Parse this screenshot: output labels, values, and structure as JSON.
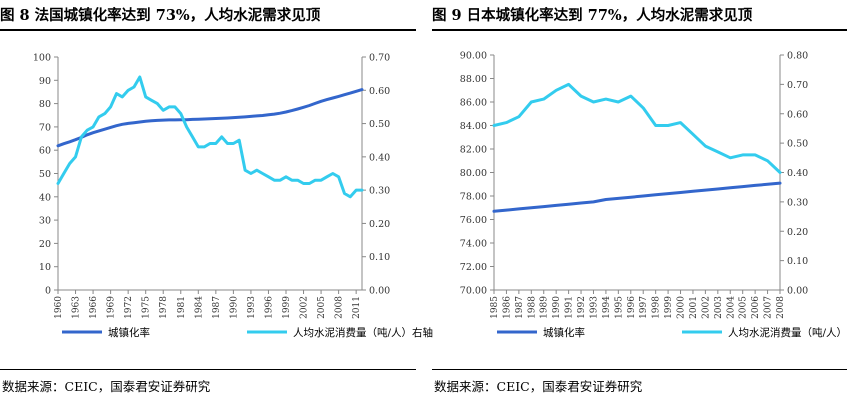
{
  "charts": [
    {
      "figure_title": "图 8  法国城镇化率达到 73%，人均水泥需求见顶",
      "source": "数据来源：CEIC，国泰君安证券研究"
    },
    {
      "figure_title": "图 9  日本城镇化率达到 77%，人均水泥需求见顶",
      "source": "数据来源：CEIC，国泰君安证券研究"
    }
  ],
  "colors": {
    "urbanization": "#3366cc",
    "cement": "#33ccee",
    "axis": "#888888"
  },
  "chart_data": [
    {
      "type": "line",
      "title": "图 8  法国城镇化率达到 73%，人均水泥需求见顶",
      "x": [
        1960,
        1961,
        1962,
        1963,
        1964,
        1965,
        1966,
        1967,
        1968,
        1969,
        1970,
        1971,
        1972,
        1973,
        1974,
        1975,
        1976,
        1977,
        1978,
        1979,
        1980,
        1981,
        1982,
        1983,
        1984,
        1985,
        1986,
        1987,
        1988,
        1989,
        1990,
        1991,
        1992,
        1993,
        1994,
        1995,
        1996,
        1997,
        1998,
        1999,
        2000,
        2001,
        2002,
        2003,
        2004,
        2005,
        2006,
        2007,
        2008,
        2009,
        2010,
        2011,
        2012
      ],
      "x_tick_labels": [
        "1960",
        "1963",
        "1966",
        "1969",
        "1972",
        "1975",
        "1978",
        "1981",
        "1984",
        "1987",
        "1990",
        "1993",
        "1996",
        "1999",
        "2002",
        "2005",
        "2008",
        "2011"
      ],
      "ylim": [
        0,
        100
      ],
      "y_ticks": [
        0,
        10,
        20,
        30,
        40,
        50,
        60,
        70,
        80,
        90,
        100
      ],
      "y2lim": [
        0,
        0.7
      ],
      "y2_tick_labels": [
        "0.00",
        "0.10",
        "0.20",
        "0.30",
        "0.40",
        "0.50",
        "0.60",
        "0.70"
      ],
      "series": [
        {
          "name": "城镇化率",
          "axis": "left",
          "values": [
            61.9,
            62.8,
            63.6,
            64.5,
            65.5,
            66.6,
            67.5,
            68.3,
            69.0,
            69.8,
            70.5,
            71.1,
            71.5,
            71.8,
            72.1,
            72.4,
            72.6,
            72.8,
            72.9,
            73.0,
            73.0,
            73.1,
            73.1,
            73.2,
            73.3,
            73.4,
            73.5,
            73.6,
            73.7,
            73.8,
            74.0,
            74.1,
            74.3,
            74.5,
            74.7,
            74.9,
            75.2,
            75.5,
            75.9,
            76.4,
            77.0,
            77.7,
            78.4,
            79.2,
            80.1,
            81.0,
            81.7,
            82.4,
            83.1,
            83.8,
            84.5,
            85.3,
            86.0
          ]
        },
        {
          "name": "人均水泥消费量（吨/人）右轴",
          "axis": "right",
          "values": [
            0.32,
            0.35,
            0.38,
            0.4,
            0.46,
            0.48,
            0.49,
            0.52,
            0.53,
            0.55,
            0.59,
            0.58,
            0.6,
            0.61,
            0.64,
            0.58,
            0.57,
            0.56,
            0.54,
            0.55,
            0.55,
            0.53,
            0.49,
            0.46,
            0.43,
            0.43,
            0.44,
            0.44,
            0.46,
            0.44,
            0.44,
            0.45,
            0.36,
            0.35,
            0.36,
            0.35,
            0.34,
            0.33,
            0.33,
            0.34,
            0.33,
            0.33,
            0.32,
            0.32,
            0.33,
            0.33,
            0.34,
            0.35,
            0.34,
            0.29,
            0.28,
            0.3,
            0.3
          ]
        }
      ],
      "legend": "bottom"
    },
    {
      "type": "line",
      "title": "图 9  日本城镇化率达到 77%，人均水泥需求见顶",
      "x": [
        1985,
        1986,
        1987,
        1988,
        1989,
        1990,
        1991,
        1992,
        1993,
        1994,
        1995,
        1996,
        1997,
        1998,
        1999,
        2000,
        2001,
        2002,
        2003,
        2004,
        2005,
        2006,
        2007,
        2008
      ],
      "x_tick_labels": [
        "1985",
        "1986",
        "1987",
        "1988",
        "1989",
        "1990",
        "1991",
        "1992",
        "1993",
        "1994",
        "1995",
        "1996",
        "1997",
        "1998",
        "1999",
        "2000",
        "2001",
        "2002",
        "2003",
        "2004",
        "2005",
        "2006",
        "2007",
        "2008"
      ],
      "ylim": [
        70,
        90
      ],
      "y_tick_labels": [
        "70.00",
        "72.00",
        "74.00",
        "76.00",
        "78.00",
        "80.00",
        "82.00",
        "84.00",
        "86.00",
        "88.00",
        "90.00"
      ],
      "y2lim": [
        0,
        0.8
      ],
      "y2_tick_labels": [
        "0.00",
        "0.10",
        "0.20",
        "0.30",
        "0.40",
        "0.50",
        "0.60",
        "0.70",
        "0.80"
      ],
      "series": [
        {
          "name": "城镇化率",
          "axis": "left",
          "values": [
            76.7,
            76.8,
            76.9,
            77.0,
            77.1,
            77.2,
            77.3,
            77.4,
            77.5,
            77.7,
            77.8,
            77.9,
            78.0,
            78.1,
            78.2,
            78.3,
            78.4,
            78.5,
            78.6,
            78.7,
            78.8,
            78.9,
            79.0,
            79.1
          ]
        },
        {
          "name": "人均水泥消费量（吨/人）右轴",
          "axis": "right",
          "values": [
            0.56,
            0.57,
            0.59,
            0.64,
            0.65,
            0.68,
            0.7,
            0.66,
            0.64,
            0.65,
            0.64,
            0.66,
            0.62,
            0.56,
            0.56,
            0.57,
            0.53,
            0.49,
            0.47,
            0.45,
            0.46,
            0.46,
            0.44,
            0.4
          ]
        }
      ],
      "legend": "bottom"
    }
  ]
}
